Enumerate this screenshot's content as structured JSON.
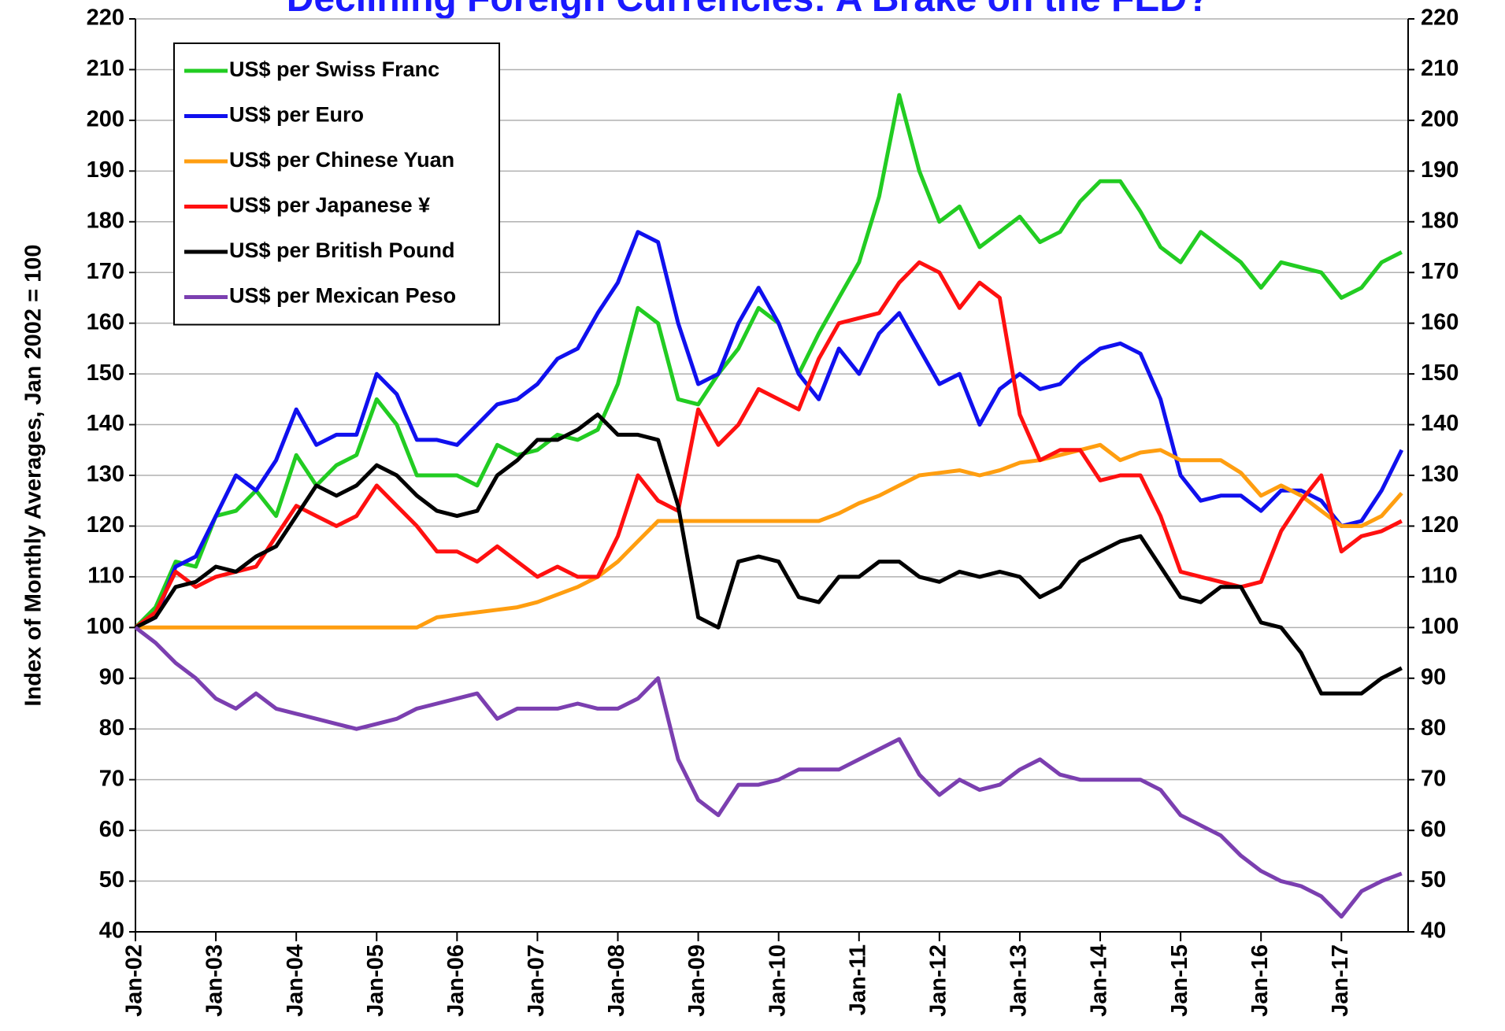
{
  "chart_data": {
    "type": "line",
    "title": "Declining Foreign Currencies: A Brake on the FED?",
    "y_label": "Index of Monthly Averages, Jan 2002 = 100",
    "x": [
      2002,
      2002.25,
      2002.5,
      2002.75,
      2003,
      2003.25,
      2003.5,
      2003.75,
      2004,
      2004.25,
      2004.5,
      2004.75,
      2005,
      2005.25,
      2005.5,
      2005.75,
      2006,
      2006.25,
      2006.5,
      2006.75,
      2007,
      2007.25,
      2007.5,
      2007.75,
      2008,
      2008.25,
      2008.5,
      2008.75,
      2009,
      2009.25,
      2009.5,
      2009.75,
      2010,
      2010.25,
      2010.5,
      2010.75,
      2011,
      2011.25,
      2011.5,
      2011.75,
      2012,
      2012.25,
      2012.5,
      2012.75,
      2013,
      2013.25,
      2013.5,
      2013.75,
      2014,
      2014.25,
      2014.5,
      2014.75,
      2015,
      2015.25,
      2015.5,
      2015.75,
      2016,
      2016.25,
      2016.5,
      2016.75,
      2017,
      2017.25,
      2017.5,
      2017.75
    ],
    "xlim": [
      2002,
      2017.83
    ],
    "xticks": [
      {
        "value": 2002,
        "label": "Jan-02"
      },
      {
        "value": 2003,
        "label": "Jan-03"
      },
      {
        "value": 2004,
        "label": "Jan-04"
      },
      {
        "value": 2005,
        "label": "Jan-05"
      },
      {
        "value": 2006,
        "label": "Jan-06"
      },
      {
        "value": 2007,
        "label": "Jan-07"
      },
      {
        "value": 2008,
        "label": "Jan-08"
      },
      {
        "value": 2009,
        "label": "Jan-09"
      },
      {
        "value": 2010,
        "label": "Jan-10"
      },
      {
        "value": 2011,
        "label": "Jan-11"
      },
      {
        "value": 2012,
        "label": "Jan-12"
      },
      {
        "value": 2013,
        "label": "Jan-13"
      },
      {
        "value": 2014,
        "label": "Jan-14"
      },
      {
        "value": 2015,
        "label": "Jan-15"
      },
      {
        "value": 2016,
        "label": "Jan-16"
      },
      {
        "value": 2017,
        "label": "Jan-17"
      }
    ],
    "ylim": [
      40,
      220
    ],
    "yticks": [
      40,
      50,
      60,
      70,
      80,
      90,
      100,
      110,
      120,
      130,
      140,
      150,
      160,
      170,
      180,
      190,
      200,
      210,
      220
    ],
    "grid": true,
    "legend": "upper left",
    "series": [
      {
        "name": "US$ per Swiss Franc",
        "color": "#22cc22",
        "values": [
          100,
          104,
          113,
          112,
          122,
          123,
          127,
          122,
          134,
          128,
          132,
          134,
          145,
          140,
          130,
          130,
          130,
          128,
          136,
          134,
          135,
          138,
          137,
          139,
          148,
          163,
          160,
          145,
          144,
          150,
          155,
          163,
          160,
          150,
          158,
          165,
          172,
          185,
          205,
          190,
          180,
          183,
          175,
          178,
          181,
          176,
          178,
          184,
          188,
          188,
          182,
          175,
          172,
          178,
          175,
          172,
          167,
          172,
          171,
          170,
          165,
          167,
          172,
          174
        ]
      },
      {
        "name": "US$ per Euro",
        "color": "#1010ee",
        "values": [
          100,
          102,
          112,
          114,
          122,
          130,
          127,
          133,
          143,
          136,
          138,
          138,
          150,
          146,
          137,
          137,
          136,
          140,
          144,
          145,
          148,
          153,
          155,
          162,
          168,
          178,
          176,
          160,
          148,
          150,
          160,
          167,
          160,
          150,
          145,
          155,
          150,
          158,
          162,
          155,
          148,
          150,
          140,
          147,
          150,
          147,
          148,
          152,
          155,
          156,
          154,
          145,
          130,
          125,
          126,
          126,
          123,
          127,
          127,
          125,
          120,
          121,
          127,
          135
        ]
      },
      {
        "name": "US$ per Chinese Yuan",
        "color": "#ff9e10",
        "values": [
          100,
          100,
          100,
          100,
          100,
          100,
          100,
          100,
          100,
          100,
          100,
          100,
          100,
          100,
          100,
          102,
          102.5,
          103,
          103.5,
          104,
          105,
          106.5,
          108,
          110,
          113,
          117,
          121,
          121,
          121,
          121,
          121,
          121,
          121,
          121,
          121,
          122.5,
          124.5,
          126,
          128,
          130,
          130.5,
          131,
          130,
          131,
          132.5,
          133,
          134,
          135,
          136,
          133,
          134.5,
          135,
          133,
          133,
          133,
          130.5,
          126,
          128,
          126,
          123,
          120,
          120,
          122,
          126.5
        ]
      },
      {
        "name": "US$ per Japanese ¥",
        "color": "#ff1010",
        "values": [
          100,
          103,
          111,
          108,
          110,
          111,
          112,
          118,
          124,
          122,
          120,
          122,
          128,
          124,
          120,
          115,
          115,
          113,
          116,
          113,
          110,
          112,
          110,
          110,
          118,
          130,
          125,
          123,
          143,
          136,
          140,
          147,
          145,
          143,
          153,
          160,
          161,
          162,
          168,
          172,
          170,
          163,
          168,
          165,
          142,
          133,
          135,
          135,
          129,
          130,
          130,
          122,
          111,
          110,
          109,
          108,
          109,
          119,
          125,
          130,
          115,
          118,
          119,
          121
        ]
      },
      {
        "name": "US$ per British Pound",
        "color": "#000000",
        "values": [
          100,
          102,
          108,
          109,
          112,
          111,
          114,
          116,
          122,
          128,
          126,
          128,
          132,
          130,
          126,
          123,
          122,
          123,
          130,
          133,
          137,
          137,
          139,
          142,
          138,
          138,
          137,
          124,
          102,
          100,
          113,
          114,
          113,
          106,
          105,
          110,
          110,
          113,
          113,
          110,
          109,
          111,
          110,
          111,
          110,
          106,
          108,
          113,
          115,
          117,
          118,
          112,
          106,
          105,
          108,
          108,
          101,
          100,
          95,
          87,
          87,
          87,
          90,
          92
        ]
      },
      {
        "name": "US$ per Mexican Peso",
        "color": "#7b3fb0",
        "values": [
          100,
          97,
          93,
          90,
          86,
          84,
          87,
          84,
          83,
          82,
          81,
          80,
          81,
          82,
          84,
          85,
          86,
          87,
          82,
          84,
          84,
          84,
          85,
          84,
          84,
          86,
          90,
          74,
          66,
          63,
          69,
          69,
          70,
          72,
          72,
          72,
          74,
          76,
          78,
          71,
          67,
          70,
          68,
          69,
          72,
          74,
          71,
          70,
          70,
          70,
          70,
          68,
          63,
          61,
          59,
          55,
          52,
          50,
          49,
          47,
          43,
          48,
          50,
          51.5
        ]
      }
    ]
  }
}
